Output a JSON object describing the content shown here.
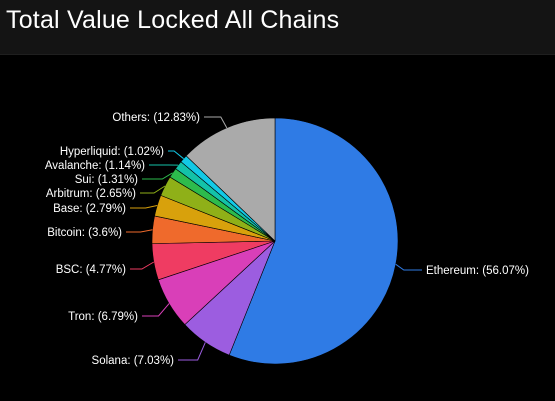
{
  "title": "Total Value Locked All Chains",
  "chart_data": {
    "type": "pie",
    "slices": [
      {
        "label": "Ethereum",
        "value": 56.07,
        "text": "Ethereum: (56.07%)",
        "color": "#2f7be5"
      },
      {
        "label": "Solana",
        "value": 7.03,
        "text": "Solana: (7.03%)",
        "color": "#9c5de0"
      },
      {
        "label": "Tron",
        "value": 6.79,
        "text": "Tron: (6.79%)",
        "color": "#d93fb8"
      },
      {
        "label": "BSC",
        "value": 4.77,
        "text": "BSC: (4.77%)",
        "color": "#ef3c62"
      },
      {
        "label": "Bitcoin",
        "value": 3.6,
        "text": "Bitcoin: (3.6%)",
        "color": "#ef6a2c"
      },
      {
        "label": "Base",
        "value": 2.79,
        "text": "Base: (2.79%)",
        "color": "#d8a10c"
      },
      {
        "label": "Arbitrum",
        "value": 2.65,
        "text": "Arbitrum: (2.65%)",
        "color": "#8fb018"
      },
      {
        "label": "Sui",
        "value": 1.31,
        "text": "Sui: (1.31%)",
        "color": "#2dbb4c"
      },
      {
        "label": "Avalanche",
        "value": 1.14,
        "text": "Avalanche: (1.14%)",
        "color": "#13c2a8"
      },
      {
        "label": "Hyperliquid",
        "value": 1.02,
        "text": "Hyperliquid: (1.02%)",
        "color": "#12c9e6"
      },
      {
        "label": "Others",
        "value": 12.83,
        "text": "Others: (12.83%)",
        "color": "#aaaaaa"
      }
    ]
  }
}
